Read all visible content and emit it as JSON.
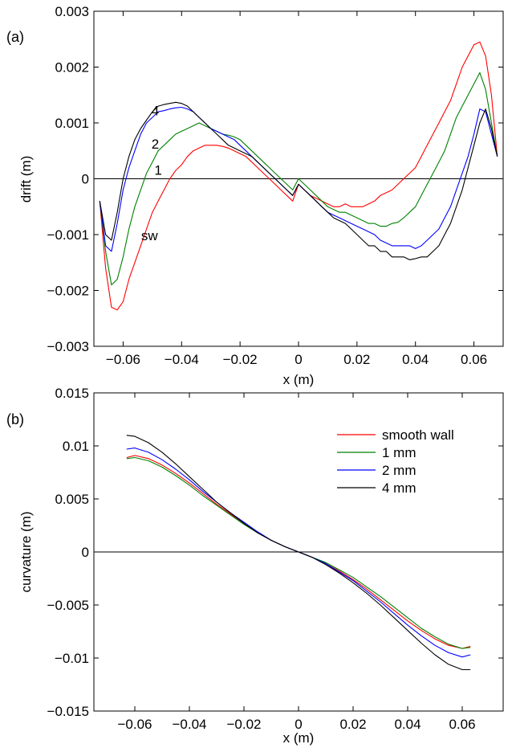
{
  "chart_data": [
    {
      "type": "line",
      "panel_label": "(a)",
      "xlabel": "x (m)",
      "ylabel": "drift (m)",
      "xlim": [
        -0.07,
        0.07
      ],
      "ylim": [
        -0.003,
        0.003
      ],
      "xticks": [
        -0.06,
        -0.04,
        -0.02,
        0,
        0.02,
        0.04,
        0.06
      ],
      "xtick_labels": [
        "−0.06",
        "−0.04",
        "−0.02",
        "0",
        "0.02",
        "0.04",
        "0.06"
      ],
      "yticks": [
        -0.003,
        -0.002,
        -0.001,
        0,
        0.001,
        0.002,
        0.003
      ],
      "ytick_labels": [
        "−0.003",
        "−0.002",
        "−0.001",
        "0",
        "0.001",
        "0.002",
        "0.003"
      ],
      "zero_line": true,
      "grid": false,
      "x": [
        -0.068,
        -0.066,
        -0.064,
        -0.062,
        -0.06,
        -0.058,
        -0.056,
        -0.054,
        -0.052,
        -0.05,
        -0.048,
        -0.046,
        -0.044,
        -0.042,
        -0.04,
        -0.038,
        -0.036,
        -0.034,
        -0.032,
        -0.03,
        -0.028,
        -0.026,
        -0.024,
        -0.022,
        -0.02,
        -0.018,
        -0.016,
        -0.014,
        -0.012,
        -0.01,
        -0.008,
        -0.006,
        -0.004,
        -0.002,
        0.0,
        0.002,
        0.004,
        0.006,
        0.008,
        0.01,
        0.012,
        0.014,
        0.016,
        0.018,
        0.02,
        0.022,
        0.024,
        0.026,
        0.028,
        0.03,
        0.032,
        0.034,
        0.036,
        0.038,
        0.04,
        0.042,
        0.044,
        0.046,
        0.048,
        0.05,
        0.052,
        0.054,
        0.056,
        0.058,
        0.06,
        0.062,
        0.064,
        0.066,
        0.068
      ],
      "series": [
        {
          "color": "#ff0000",
          "values": [
            -0.0004,
            -0.0016,
            -0.0023,
            -0.00235,
            -0.0022,
            -0.0018,
            -0.0015,
            -0.0012,
            -0.0009,
            -0.0006,
            -0.0004,
            -0.0002,
            0.0,
            0.00015,
            0.00025,
            0.0004,
            0.0005,
            0.00055,
            0.0006,
            0.0006,
            0.0006,
            0.00058,
            0.00055,
            0.0005,
            0.00045,
            0.0004,
            0.0003,
            0.0002,
            0.0001,
            0.0,
            -0.0001,
            -0.0002,
            -0.0003,
            -0.0004,
            -0.0001,
            -0.0002,
            -0.0003,
            -0.00035,
            -0.0004,
            -0.00045,
            -0.0005,
            -0.0005,
            -0.00045,
            -0.0005,
            -0.0005,
            -0.0005,
            -0.00045,
            -0.0004,
            -0.0003,
            -0.00025,
            -0.0002,
            -0.0001,
            0.0,
            0.0001,
            0.0002,
            0.0004,
            0.0006,
            0.0008,
            0.001,
            0.0012,
            0.0014,
            0.0017,
            0.002,
            0.0022,
            0.0024,
            0.00245,
            0.0022,
            0.0015,
            0.0004
          ],
          "label_text": "sw"
        },
        {
          "color": "#008000",
          "values": [
            -0.0004,
            -0.0013,
            -0.0019,
            -0.0018,
            -0.0014,
            -0.0009,
            -0.0005,
            -0.0002,
            0.0001,
            0.0003,
            0.0005,
            0.0006,
            0.0007,
            0.0008,
            0.00085,
            0.0009,
            0.00095,
            0.001,
            0.00095,
            0.0009,
            0.00085,
            0.0008,
            0.00078,
            0.00075,
            0.0007,
            0.0006,
            0.0005,
            0.0004,
            0.0003,
            0.0002,
            0.0001,
            0.0,
            -0.0001,
            -0.0002,
            0.0,
            -0.0001,
            -0.0002,
            -0.0003,
            -0.0004,
            -0.0005,
            -0.00055,
            -0.0006,
            -0.0006,
            -0.00065,
            -0.0007,
            -0.00075,
            -0.0008,
            -0.0008,
            -0.00085,
            -0.00085,
            -0.0008,
            -0.00078,
            -0.0007,
            -0.0006,
            -0.0005,
            -0.0003,
            -0.0001,
            0.0001,
            0.0003,
            0.0005,
            0.0008,
            0.0011,
            0.0013,
            0.0015,
            0.0017,
            0.0019,
            0.0016,
            0.001,
            0.0004
          ],
          "label_text": "1"
        },
        {
          "color": "#0000ff",
          "values": [
            -0.0004,
            -0.0012,
            -0.0013,
            -0.0008,
            -0.0002,
            0.0002,
            0.0005,
            0.0008,
            0.001,
            0.0011,
            0.0012,
            0.00122,
            0.00125,
            0.00127,
            0.00128,
            0.00125,
            0.0012,
            0.0011,
            0.001,
            0.0009,
            0.00085,
            0.0008,
            0.00075,
            0.0007,
            0.0006,
            0.0005,
            0.0004,
            0.0003,
            0.0002,
            0.0001,
            0.0,
            -0.0001,
            -0.0002,
            -0.0003,
            -0.0001,
            -0.0002,
            -0.0003,
            -0.0004,
            -0.0005,
            -0.0006,
            -0.00065,
            -0.0007,
            -0.00075,
            -0.0008,
            -0.00085,
            -0.0009,
            -0.00095,
            -0.001,
            -0.0011,
            -0.00115,
            -0.0012,
            -0.0012,
            -0.0012,
            -0.0012,
            -0.00125,
            -0.0012,
            -0.0011,
            -0.001,
            -0.0009,
            -0.0007,
            -0.0005,
            -0.0002,
            0.0001,
            0.0004,
            0.0008,
            0.00125,
            0.0012,
            0.0008,
            0.0004
          ],
          "label_text": "2"
        },
        {
          "color": "#000000",
          "values": [
            -0.0004,
            -0.001,
            -0.0011,
            -0.0006,
            0.0,
            0.0004,
            0.0007,
            0.0009,
            0.00105,
            0.0012,
            0.0013,
            0.00133,
            0.00135,
            0.00137,
            0.00135,
            0.0013,
            0.0012,
            0.0011,
            0.001,
            0.0009,
            0.0008,
            0.0007,
            0.0006,
            0.00055,
            0.0005,
            0.00045,
            0.0004,
            0.0003,
            0.0002,
            0.0001,
            0.0,
            -0.0001,
            -0.0002,
            -0.0003,
            -0.0001,
            -0.0002,
            -0.0003,
            -0.0004,
            -0.0005,
            -0.0006,
            -0.0007,
            -0.00075,
            -0.0008,
            -0.0009,
            -0.001,
            -0.0011,
            -0.0012,
            -0.0012,
            -0.0013,
            -0.0013,
            -0.0014,
            -0.0014,
            -0.0014,
            -0.00145,
            -0.00143,
            -0.0014,
            -0.0014,
            -0.0013,
            -0.0012,
            -0.001,
            -0.0008,
            -0.0005,
            -0.0002,
            0.0002,
            0.0006,
            0.001,
            0.00125,
            0.0009,
            0.0004
          ],
          "label_text": "4"
        }
      ]
    },
    {
      "type": "line",
      "panel_label": "(b)",
      "xlabel": "x (m)",
      "ylabel": "curvature (m)",
      "xlim": [
        -0.075,
        0.075
      ],
      "ylim": [
        -0.015,
        0.015
      ],
      "xticks": [
        -0.06,
        -0.04,
        -0.02,
        0,
        0.02,
        0.04,
        0.06
      ],
      "xtick_labels": [
        "−0.06",
        "−0.04",
        "−0.02",
        "0",
        "0.02",
        "0.04",
        "0.06"
      ],
      "yticks": [
        -0.015,
        -0.01,
        -0.005,
        0,
        0.005,
        0.01,
        0.015
      ],
      "ytick_labels": [
        "−0.015",
        "−0.01",
        "−0.005",
        "0",
        "0.005",
        "0.01",
        "0.015"
      ],
      "zero_line": true,
      "grid": false,
      "legend_position": "top-right",
      "x": [
        -0.063,
        -0.06,
        -0.055,
        -0.05,
        -0.045,
        -0.04,
        -0.035,
        -0.03,
        -0.025,
        -0.02,
        -0.015,
        -0.01,
        -0.005,
        0.0,
        0.005,
        0.01,
        0.015,
        0.02,
        0.025,
        0.03,
        0.035,
        0.04,
        0.045,
        0.05,
        0.055,
        0.06,
        0.063
      ],
      "series": [
        {
          "name": "smooth wall",
          "color": "#ff0000",
          "values": [
            0.0089,
            0.0091,
            0.0088,
            0.0082,
            0.0074,
            0.0065,
            0.0055,
            0.0045,
            0.0036,
            0.0027,
            0.0018,
            0.0011,
            0.0005,
            0.0,
            -0.0005,
            -0.0011,
            -0.0018,
            -0.0026,
            -0.0035,
            -0.0045,
            -0.0055,
            -0.0065,
            -0.0074,
            -0.0082,
            -0.0088,
            -0.0091,
            -0.0089
          ]
        },
        {
          "name": "1 mm",
          "color": "#008000",
          "values": [
            0.0088,
            0.0089,
            0.0086,
            0.008,
            0.0072,
            0.0063,
            0.0053,
            0.0044,
            0.0035,
            0.0026,
            0.0018,
            0.0011,
            0.0005,
            0.0,
            -0.0005,
            -0.001,
            -0.0017,
            -0.0024,
            -0.0033,
            -0.0042,
            -0.0052,
            -0.0062,
            -0.0072,
            -0.008,
            -0.0087,
            -0.0091,
            -0.009
          ]
        },
        {
          "name": "2 mm",
          "color": "#0000ff",
          "values": [
            0.0097,
            0.0098,
            0.0094,
            0.0087,
            0.0078,
            0.0068,
            0.0057,
            0.0047,
            0.0037,
            0.0028,
            0.0019,
            0.0011,
            0.0005,
            0.0,
            -0.0005,
            -0.0011,
            -0.0019,
            -0.0027,
            -0.0037,
            -0.0047,
            -0.0058,
            -0.0069,
            -0.0079,
            -0.0088,
            -0.0095,
            -0.0099,
            -0.0097
          ]
        },
        {
          "name": "4 mm",
          "color": "#000000",
          "values": [
            0.011,
            0.0109,
            0.0103,
            0.0094,
            0.0083,
            0.0071,
            0.0059,
            0.0047,
            0.0037,
            0.0027,
            0.0018,
            0.0011,
            0.0005,
            0.0,
            -0.0005,
            -0.0012,
            -0.002,
            -0.0029,
            -0.0039,
            -0.005,
            -0.0062,
            -0.0074,
            -0.0086,
            -0.0097,
            -0.0106,
            -0.0111,
            -0.0111
          ]
        }
      ]
    }
  ]
}
